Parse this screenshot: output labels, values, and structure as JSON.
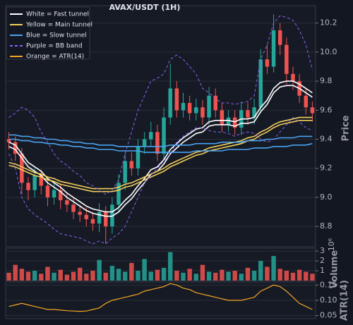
{
  "chart_data": [
    {
      "type": "candlestick",
      "title": "AVAX/USDT (1H)",
      "y_label": "Price",
      "up_color": "#26a69a",
      "down_color": "#ef5350",
      "grid": true,
      "legend": "upper left",
      "ylim": [
        8.66,
        10.32
      ],
      "yticks": [
        8.8,
        {
          "value": 9,
          "label": "9.0"
        },
        9.2,
        9.4,
        9.6,
        9.8,
        {
          "value": 10,
          "label": "10.0"
        },
        10.2
      ],
      "open": [
        9.4,
        9.38,
        9.3,
        9.1,
        9.05,
        9.15,
        9.08,
        9.0,
        9.05,
        8.98,
        8.95,
        8.9,
        8.88,
        8.85,
        8.82,
        8.9,
        8.8,
        8.95,
        9.1,
        9.25,
        9.2,
        9.35,
        9.4,
        9.45,
        9.3,
        9.55,
        9.75,
        9.6,
        9.65,
        9.58,
        9.62,
        9.55,
        9.7,
        9.6,
        9.5,
        9.55,
        9.48,
        9.6,
        9.55,
        9.62,
        9.95,
        9.9,
        10.15,
        10.05,
        9.85,
        9.8,
        9.7,
        9.62
      ],
      "high": [
        9.45,
        9.42,
        9.34,
        9.14,
        9.2,
        9.19,
        9.12,
        9.1,
        9.09,
        9.03,
        9.0,
        8.95,
        8.93,
        8.9,
        8.96,
        8.94,
        9.0,
        9.16,
        9.3,
        9.31,
        9.4,
        9.45,
        9.52,
        9.5,
        9.62,
        9.92,
        9.8,
        9.72,
        9.7,
        9.68,
        9.67,
        9.76,
        9.75,
        9.65,
        9.6,
        9.6,
        9.66,
        9.65,
        9.68,
        10.02,
        10.05,
        10.26,
        10.2,
        10.1,
        9.9,
        9.85,
        9.75,
        9.66
      ],
      "low": [
        9.33,
        9.25,
        9.02,
        8.98,
        9.0,
        9.02,
        8.94,
        8.95,
        8.92,
        8.9,
        8.85,
        8.83,
        8.8,
        8.77,
        8.76,
        8.68,
        8.75,
        8.9,
        9.05,
        9.15,
        9.15,
        9.3,
        9.35,
        9.25,
        9.26,
        9.5,
        9.55,
        9.55,
        9.53,
        9.53,
        9.5,
        9.5,
        9.55,
        9.45,
        9.45,
        9.43,
        9.43,
        9.5,
        9.5,
        9.58,
        9.85,
        9.86,
        9.98,
        9.78,
        9.74,
        9.65,
        9.57,
        9.52
      ],
      "close": [
        9.38,
        9.3,
        9.1,
        9.05,
        9.15,
        9.08,
        9.0,
        9.05,
        8.98,
        8.95,
        8.9,
        8.88,
        8.85,
        8.82,
        8.9,
        8.8,
        8.95,
        9.1,
        9.25,
        9.2,
        9.35,
        9.4,
        9.45,
        9.3,
        9.55,
        9.75,
        9.6,
        9.65,
        9.58,
        9.62,
        9.55,
        9.7,
        9.6,
        9.5,
        9.55,
        9.48,
        9.6,
        9.55,
        9.62,
        9.95,
        9.9,
        10.15,
        10.05,
        9.85,
        9.8,
        9.7,
        9.62,
        9.58
      ],
      "series": [
        {
          "name": "White = Fast tunnel",
          "color": "#ffffff",
          "style": "solid",
          "lines": [
            [
              9.38,
              9.36,
              9.3,
              9.24,
              9.21,
              9.18,
              9.13,
              9.1,
              9.07,
              9.03,
              9.0,
              8.97,
              8.94,
              8.92,
              8.91,
              8.9,
              8.9,
              8.93,
              8.98,
              9.02,
              9.08,
              9.13,
              9.19,
              9.21,
              9.26,
              9.33,
              9.37,
              9.41,
              9.44,
              9.47,
              9.48,
              9.52,
              9.53,
              9.53,
              9.53,
              9.52,
              9.54,
              9.54,
              9.55,
              9.62,
              9.67,
              9.75,
              9.79,
              9.8,
              9.8,
              9.78,
              9.75,
              9.72
            ],
            [
              9.35,
              9.33,
              9.27,
              9.21,
              9.18,
              9.15,
              9.1,
              9.07,
              9.04,
              9.0,
              8.97,
              8.94,
              8.91,
              8.89,
              8.88,
              8.87,
              8.87,
              8.9,
              8.95,
              8.99,
              9.05,
              9.1,
              9.16,
              9.18,
              9.23,
              9.3,
              9.34,
              9.38,
              9.41,
              9.44,
              9.45,
              9.49,
              9.5,
              9.5,
              9.5,
              9.49,
              9.51,
              9.51,
              9.52,
              9.59,
              9.64,
              9.72,
              9.76,
              9.77,
              9.77,
              9.75,
              9.72,
              9.69
            ]
          ]
        },
        {
          "name": "Yellow = Main tunnel",
          "color": "#f2cf5b",
          "style": "solid",
          "lines": [
            [
              9.24,
              9.23,
              9.21,
              9.19,
              9.17,
              9.16,
              9.14,
              9.13,
              9.11,
              9.1,
              9.09,
              9.08,
              9.07,
              9.06,
              9.06,
              9.06,
              9.06,
              9.07,
              9.09,
              9.1,
              9.12,
              9.14,
              9.16,
              9.18,
              9.2,
              9.23,
              9.25,
              9.27,
              9.29,
              9.31,
              9.32,
              9.34,
              9.35,
              9.36,
              9.37,
              9.38,
              9.39,
              9.41,
              9.42,
              9.45,
              9.47,
              9.5,
              9.52,
              9.53,
              9.54,
              9.55,
              9.55,
              9.55
            ],
            [
              9.22,
              9.21,
              9.19,
              9.17,
              9.15,
              9.14,
              9.12,
              9.11,
              9.09,
              9.08,
              9.07,
              9.06,
              9.05,
              9.04,
              9.04,
              9.04,
              9.04,
              9.05,
              9.07,
              9.08,
              9.1,
              9.12,
              9.14,
              9.16,
              9.18,
              9.21,
              9.23,
              9.25,
              9.27,
              9.29,
              9.3,
              9.32,
              9.33,
              9.34,
              9.35,
              9.36,
              9.37,
              9.39,
              9.4,
              9.43,
              9.45,
              9.48,
              9.5,
              9.51,
              9.52,
              9.53,
              9.53,
              9.53
            ]
          ]
        },
        {
          "name": "Blue = Slow tunnel",
          "color": "#4aa3f0",
          "style": "solid",
          "lines": [
            [
              9.43,
              9.43,
              9.42,
              9.42,
              9.41,
              9.41,
              9.4,
              9.4,
              9.39,
              9.39,
              9.38,
              9.38,
              9.37,
              9.37,
              9.36,
              9.36,
              9.36,
              9.35,
              9.35,
              9.35,
              9.35,
              9.35,
              9.35,
              9.35,
              9.35,
              9.36,
              9.36,
              9.36,
              9.36,
              9.37,
              9.37,
              9.37,
              9.37,
              9.38,
              9.38,
              9.38,
              9.38,
              9.39,
              9.39,
              9.39,
              9.4,
              9.4,
              9.41,
              9.41,
              9.41,
              9.42,
              9.42,
              9.42
            ],
            [
              9.4,
              9.4,
              9.39,
              9.39,
              9.38,
              9.38,
              9.37,
              9.37,
              9.36,
              9.36,
              9.35,
              9.35,
              9.34,
              9.34,
              9.33,
              9.33,
              9.33,
              9.32,
              9.32,
              9.32,
              9.32,
              9.31,
              9.31,
              9.31,
              9.31,
              9.31,
              9.31,
              9.31,
              9.31,
              9.32,
              9.32,
              9.32,
              9.32,
              9.32,
              9.33,
              9.33,
              9.33,
              9.33,
              9.34,
              9.34,
              9.34,
              9.35,
              9.35,
              9.35,
              9.36,
              9.36,
              9.36,
              9.37
            ]
          ]
        },
        {
          "name": "Purple = BB band",
          "color": "#8a63f0",
          "style": "dashed",
          "lines": [
            [
              9.55,
              9.58,
              9.62,
              9.6,
              9.55,
              9.45,
              9.38,
              9.3,
              9.25,
              9.22,
              9.18,
              9.15,
              9.1,
              9.08,
              9.05,
              9.02,
              9.05,
              9.12,
              9.3,
              9.45,
              9.6,
              9.7,
              9.8,
              9.82,
              9.85,
              9.95,
              9.98,
              9.95,
              9.9,
              9.85,
              9.75,
              9.72,
              9.68,
              9.65,
              9.65,
              9.64,
              9.65,
              9.66,
              9.7,
              9.95,
              10.05,
              10.2,
              10.25,
              10.24,
              10.22,
              10.15,
              10.05,
              9.88
            ],
            [
              9.3,
              9.2,
              9.0,
              8.92,
              8.88,
              8.85,
              8.82,
              8.78,
              8.75,
              8.74,
              8.73,
              8.72,
              8.7,
              8.68,
              8.7,
              8.68,
              8.72,
              8.75,
              8.8,
              8.9,
              9.0,
              9.1,
              9.15,
              9.2,
              9.25,
              9.3,
              9.38,
              9.42,
              9.45,
              9.48,
              9.48,
              9.46,
              9.45,
              9.45,
              9.44,
              9.42,
              9.44,
              9.45,
              9.44,
              9.4,
              9.38,
              9.4,
              9.45,
              9.5,
              9.55,
              9.52,
              9.48,
              9.46
            ]
          ]
        }
      ]
    },
    {
      "type": "bar",
      "y_label": "Volume",
      "offset_label": "10⁶",
      "grid": true,
      "ylim": [
        0,
        3.3
      ],
      "yticks": [
        1,
        2,
        3
      ],
      "values": [
        0.8,
        1.6,
        1.2,
        0.9,
        1.0,
        0.7,
        1.4,
        0.8,
        1.1,
        0.6,
        0.9,
        1.3,
        0.7,
        1.0,
        2.1,
        0.8,
        1.5,
        1.2,
        0.9,
        1.8,
        1.0,
        2.2,
        0.9,
        1.1,
        1.3,
        2.9,
        1.0,
        0.8,
        1.2,
        0.7,
        1.6,
        0.9,
        0.8,
        1.1,
        0.9,
        1.0,
        0.7,
        1.3,
        1.0,
        2.0,
        1.4,
        2.5,
        1.2,
        1.0,
        0.8,
        1.1,
        0.9,
        0.7
      ]
    },
    {
      "type": "line",
      "y_label": "ATR(14)",
      "grid": true,
      "ylim": [
        0.04,
        0.16
      ],
      "yticks": [
        0.05,
        {
          "value": 0.1,
          "label": "0.10"
        },
        0.15
      ],
      "series": [
        {
          "name": "Orange = ATR(14)",
          "color": "#f5a623",
          "values": [
            0.08,
            0.085,
            0.09,
            0.085,
            0.08,
            0.075,
            0.07,
            0.07,
            0.068,
            0.066,
            0.065,
            0.064,
            0.065,
            0.07,
            0.075,
            0.09,
            0.1,
            0.105,
            0.11,
            0.115,
            0.12,
            0.13,
            0.135,
            0.14,
            0.145,
            0.155,
            0.15,
            0.14,
            0.135,
            0.125,
            0.12,
            0.115,
            0.11,
            0.105,
            0.1,
            0.1,
            0.1,
            0.105,
            0.11,
            0.13,
            0.14,
            0.15,
            0.145,
            0.13,
            0.11,
            0.09,
            0.08,
            0.07
          ]
        }
      ]
    }
  ]
}
